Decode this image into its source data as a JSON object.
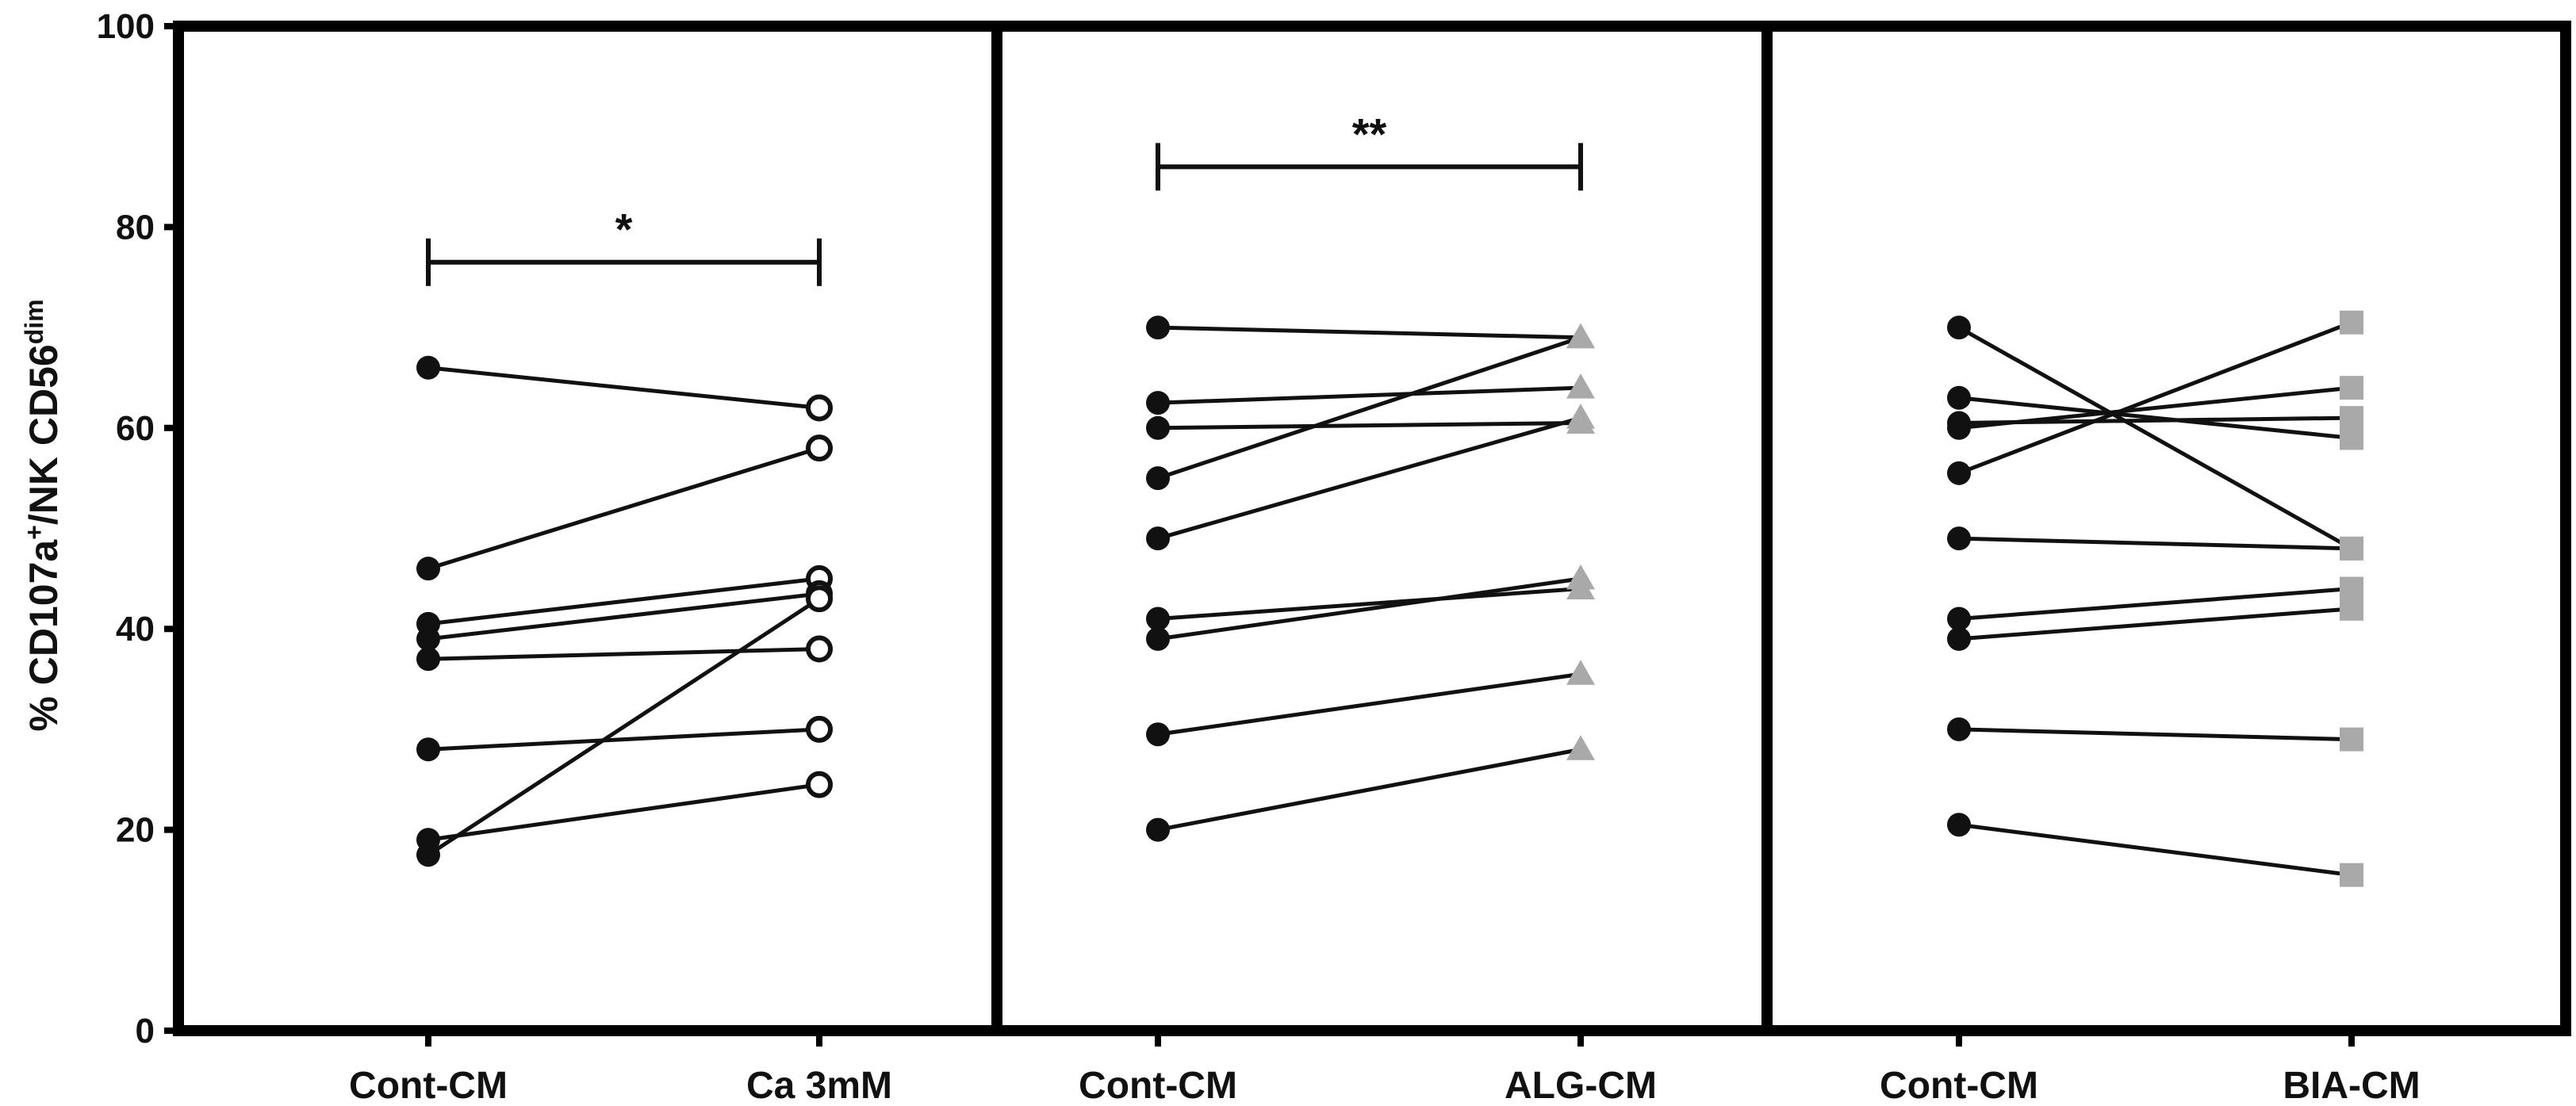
{
  "chart_data": {
    "type": "scatter",
    "ylabel": {
      "prefix": "% CD107a",
      "sup1": "+",
      "middle": "/NK CD56",
      "sup2": "dim"
    },
    "ylim": [
      0,
      100
    ],
    "yticks": [
      0,
      20,
      40,
      60,
      80,
      100
    ],
    "grid": false,
    "panels": [
      {
        "categories": [
          "Cont-CM",
          "Ca 3mM"
        ],
        "marker_right": "open-circle",
        "significance": "*",
        "pairs": [
          [
            66,
            62
          ],
          [
            46,
            58
          ],
          [
            40.5,
            45
          ],
          [
            39,
            43.5
          ],
          [
            37,
            38
          ],
          [
            28,
            30
          ],
          [
            19,
            24.5
          ],
          [
            17.5,
            43
          ]
        ]
      },
      {
        "categories": [
          "Cont-CM",
          "ALG-CM"
        ],
        "marker_right": "gray-triangle",
        "significance": "**",
        "pairs": [
          [
            70,
            69
          ],
          [
            62.5,
            64
          ],
          [
            60,
            60.5
          ],
          [
            55,
            69
          ],
          [
            49,
            61
          ],
          [
            41,
            44
          ],
          [
            39,
            45
          ],
          [
            29.5,
            35.5
          ],
          [
            20,
            28
          ]
        ]
      },
      {
        "categories": [
          "Cont-CM",
          "BIA-CM"
        ],
        "marker_right": "gray-square",
        "significance": "",
        "pairs": [
          [
            70,
            48
          ],
          [
            63,
            59
          ],
          [
            60.5,
            61
          ],
          [
            60,
            64
          ],
          [
            55.5,
            70.5
          ],
          [
            49,
            48
          ],
          [
            41,
            44
          ],
          [
            39,
            42
          ],
          [
            30,
            29
          ],
          [
            20.5,
            15.5
          ]
        ]
      }
    ],
    "colors": {
      "line": "#111111",
      "marker_fill": "#111111",
      "gray_marker": "#a9a9a9",
      "frame": "#000000"
    }
  }
}
